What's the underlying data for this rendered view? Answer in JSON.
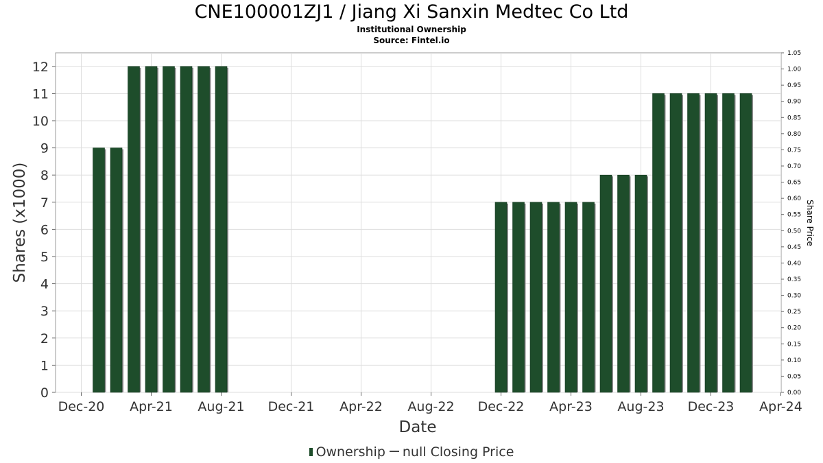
{
  "header": {
    "title": "CNE100001ZJ1 / Jiang Xi Sanxin Medtec Co Ltd",
    "subtitle": "Institutional Ownership",
    "source": "Source: Fintel.io"
  },
  "legend": {
    "ownership_label": "Ownership",
    "price_label": "null Closing Price"
  },
  "colors": {
    "bar": "#1e4d2b",
    "bar_shadow": "#8c8c8c",
    "grid": "#dddddd"
  },
  "chart_data": {
    "type": "bar",
    "xlabel": "Date",
    "ylabel": "Shares (x1000)",
    "y2label": "Share Price",
    "ylim": [
      0,
      12.5
    ],
    "y2lim": [
      0,
      1.05
    ],
    "grid": true,
    "legend_position": "bottom",
    "x_ticks": [
      "Dec-20",
      "Apr-21",
      "Aug-21",
      "Dec-21",
      "Apr-22",
      "Aug-22",
      "Dec-22",
      "Apr-23",
      "Aug-23",
      "Dec-23",
      "Apr-24"
    ],
    "y_ticks": [
      "0",
      "1",
      "2",
      "3",
      "4",
      "5",
      "6",
      "7",
      "8",
      "9",
      "10",
      "11",
      "12"
    ],
    "y2_ticks": [
      "0.00",
      "0.05",
      "0.10",
      "0.15",
      "0.20",
      "0.25",
      "0.30",
      "0.35",
      "0.40",
      "0.45",
      "0.50",
      "0.55",
      "0.60",
      "0.65",
      "0.70",
      "0.75",
      "0.80",
      "0.85",
      "0.90",
      "0.95",
      "1.00",
      "1.05"
    ],
    "series": [
      {
        "name": "Ownership",
        "x": [
          "2021-01",
          "2021-02",
          "2021-03",
          "2021-04",
          "2021-05",
          "2021-06",
          "2021-07",
          "2021-08",
          "2022-12",
          "2023-01",
          "2023-02",
          "2023-03",
          "2023-04",
          "2023-05",
          "2023-06",
          "2023-07",
          "2023-08",
          "2023-09",
          "2023-10",
          "2023-11",
          "2023-12",
          "2024-01",
          "2024-02"
        ],
        "values": [
          9,
          9,
          12,
          12,
          12,
          12,
          12,
          12,
          7,
          7,
          7,
          7,
          7,
          7,
          8,
          8,
          8,
          11,
          11,
          11,
          11,
          11,
          11
        ]
      }
    ]
  }
}
